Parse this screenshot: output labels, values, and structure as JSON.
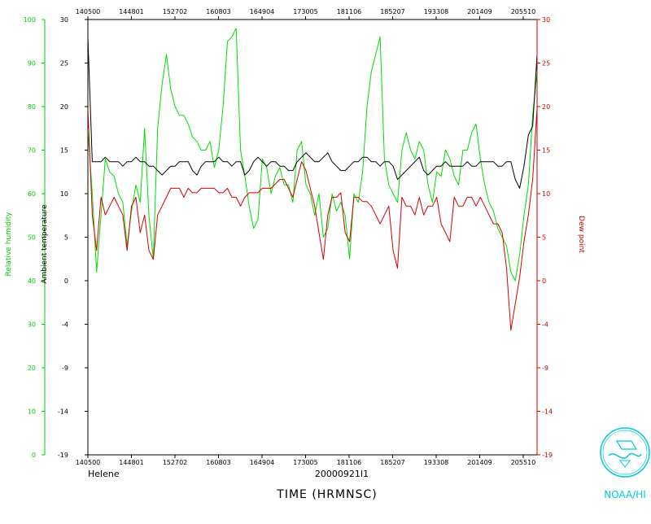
{
  "chart_data": {
    "type": "line",
    "storm_label": "Helene",
    "date_label": "20000921I1",
    "xlabel": "TIME (HRMNSC)",
    "logo_text": "NOAA/HI",
    "x_tick_labels": [
      "140500",
      "144801",
      "152702",
      "160803",
      "164904",
      "173005",
      "181106",
      "185207",
      "193308",
      "201409",
      "205510"
    ],
    "left_axis": {
      "label": "Ambient temperature",
      "ylim": [
        -19,
        30
      ],
      "ticks": [
        30,
        25,
        20,
        15,
        10,
        5,
        0,
        -4,
        -9,
        -14,
        -19
      ]
    },
    "right_axis": {
      "label": "Dew point",
      "ylim": [
        -19,
        30
      ],
      "ticks": [
        30,
        25,
        20,
        15,
        10,
        5,
        0,
        -4,
        -9,
        -14,
        -19
      ]
    },
    "far_left_axis": {
      "label": "Relative humidity",
      "ylim": [
        0,
        100
      ],
      "ticks": [
        100,
        90,
        80,
        70,
        60,
        50,
        40,
        30,
        20,
        10,
        0
      ]
    },
    "series": [
      {
        "name": "Ambient temperature",
        "color": "#000000",
        "values": [
          28,
          14,
          14,
          14,
          14.5,
          14,
          14,
          14,
          13.5,
          14,
          14,
          14.5,
          14,
          14,
          13.5,
          13.5,
          13,
          12.5,
          13,
          13.5,
          13.5,
          14,
          14,
          14,
          13,
          12.5,
          13.5,
          14,
          14,
          14,
          14.5,
          14,
          14,
          13.5,
          14,
          14,
          12.5,
          13,
          14,
          14.5,
          14,
          13.5,
          14,
          14,
          13.5,
          13.5,
          13,
          13,
          14,
          14.5,
          15,
          14.5,
          14,
          14,
          14.5,
          15,
          14,
          13.5,
          13,
          13,
          13.5,
          14,
          14,
          14.5,
          14.5,
          14,
          14,
          13.5,
          14,
          14,
          13.5,
          12,
          12.5,
          13,
          13.5,
          14,
          14.5,
          13,
          12.5,
          13,
          13.5,
          13.5,
          14,
          13.5,
          13.5,
          13.5,
          13.5,
          14,
          13.5,
          13.5,
          14,
          14,
          14,
          14,
          13.5,
          13.5,
          14,
          14,
          12,
          11,
          13.5,
          17,
          18,
          26
        ]
      },
      {
        "name": "Dew point",
        "color": "#d40000",
        "values": [
          20,
          8,
          4,
          10,
          8,
          9,
          10,
          9,
          8,
          4,
          9,
          10,
          6,
          8,
          4,
          3,
          8,
          9,
          10,
          11,
          11,
          11,
          10,
          11,
          10.5,
          10.5,
          11,
          11,
          11,
          11,
          10.5,
          10.5,
          11,
          10,
          10,
          9,
          10,
          10.5,
          10.5,
          10.5,
          11,
          11,
          11,
          11.5,
          12,
          12,
          11,
          10,
          12,
          14,
          13,
          11,
          9,
          6,
          3,
          8,
          10,
          10,
          10.5,
          6,
          5,
          10,
          10,
          9.5,
          9.5,
          9,
          8,
          7,
          8,
          9,
          4,
          2,
          10,
          9,
          9,
          8,
          10,
          8,
          9,
          9,
          10,
          7,
          6,
          5,
          10,
          9,
          9,
          10,
          10,
          9,
          10,
          9,
          8,
          7,
          7,
          6,
          2,
          -5,
          -2,
          1,
          5,
          8,
          12,
          20
        ]
      },
      {
        "name": "Relative humidity",
        "color": "#00dd00",
        "values": [
          75,
          60,
          42,
          55,
          68,
          65,
          64,
          60,
          58,
          48,
          56,
          62,
          58,
          75,
          55,
          45,
          75,
          85,
          92,
          84,
          80,
          78,
          78,
          76,
          73,
          72,
          70,
          70,
          72,
          66,
          70,
          80,
          95,
          96,
          98,
          70,
          64,
          57,
          52,
          54,
          68,
          66,
          60,
          64,
          66,
          62,
          62,
          58,
          70,
          72,
          62,
          60,
          55,
          60,
          50,
          52,
          60,
          56,
          58,
          55,
          45,
          60,
          58,
          65,
          80,
          88,
          92,
          96,
          68,
          62,
          60,
          58,
          70,
          74,
          70,
          68,
          72,
          70,
          62,
          58,
          65,
          64,
          70,
          68,
          64,
          62,
          70,
          70,
          74,
          76,
          68,
          62,
          58,
          56,
          52,
          50,
          48,
          42,
          40,
          46,
          55,
          62,
          78,
          88
        ]
      }
    ]
  }
}
